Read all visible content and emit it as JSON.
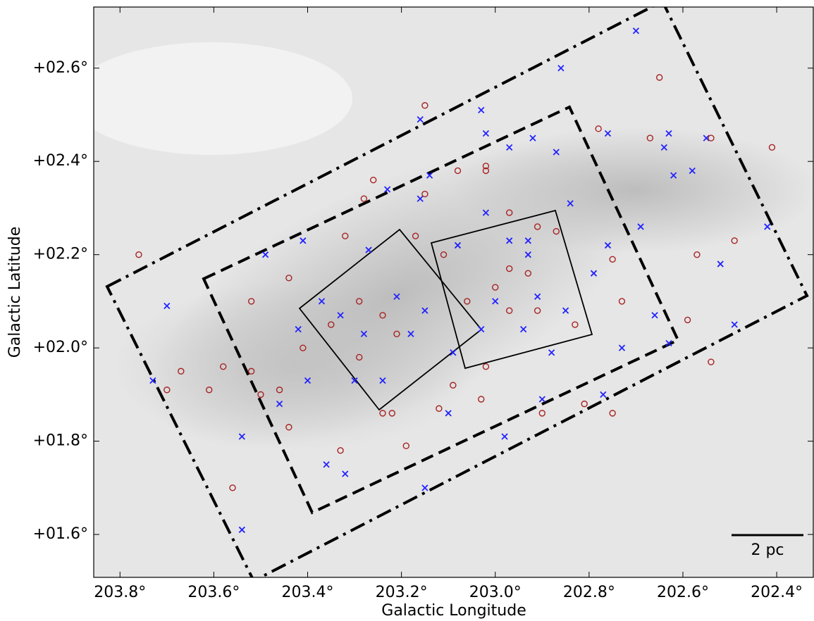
{
  "chart_data": {
    "type": "scatter",
    "xlabel": "Galactic Longitude",
    "ylabel": "Galactic Latitude",
    "xlim": [
      203.856,
      202.322
    ],
    "ylim": [
      1.508,
      2.731
    ],
    "xticks": [
      {
        "value": 203.8,
        "label": "203.8°"
      },
      {
        "value": 203.6,
        "label": "203.6°"
      },
      {
        "value": 203.4,
        "label": "203.4°"
      },
      {
        "value": 203.2,
        "label": "203.2°"
      },
      {
        "value": 203.0,
        "label": "203.0°"
      },
      {
        "value": 202.8,
        "label": "202.8°"
      },
      {
        "value": 202.6,
        "label": "202.6°"
      },
      {
        "value": 202.4,
        "label": "202.4°"
      }
    ],
    "yticks": [
      {
        "value": 1.6,
        "label": "+01.6°"
      },
      {
        "value": 1.8,
        "label": "+01.8°"
      },
      {
        "value": 2.0,
        "label": "+02.0°"
      },
      {
        "value": 2.2,
        "label": "+02.2°"
      },
      {
        "value": 2.4,
        "label": "+02.4°"
      },
      {
        "value": 2.6,
        "label": "+02.6°"
      }
    ],
    "scale_bar_label": "2 pc",
    "series": [
      {
        "marker": "x",
        "color": "#2323ff",
        "x": [
          203.7,
          203.73,
          203.54,
          203.49,
          203.54,
          203.46,
          203.41,
          203.36,
          203.32,
          203.27,
          203.23,
          203.16,
          203.14,
          203.03,
          203.02,
          202.97,
          202.92,
          202.86,
          202.87,
          202.76,
          202.7,
          202.63,
          202.58,
          202.55,
          202.42,
          202.52,
          202.49,
          202.63,
          202.73,
          202.77,
          202.9,
          202.98,
          203.1,
          203.15,
          203.18,
          203.28,
          203.33,
          203.21,
          203.15,
          203.08,
          203.02,
          202.97,
          202.93,
          202.93,
          202.91,
          203.0,
          203.03,
          202.94,
          202.85,
          202.79,
          202.76,
          202.69,
          202.66,
          202.88,
          203.09,
          203.24,
          203.3,
          203.4,
          203.42,
          203.37,
          203.16,
          202.84,
          202.64,
          202.62
        ],
        "values": [
          2.09,
          1.93,
          1.61,
          2.2,
          1.81,
          1.88,
          2.23,
          1.75,
          1.73,
          2.21,
          2.34,
          2.49,
          2.37,
          2.51,
          2.46,
          2.43,
          2.45,
          2.6,
          2.42,
          2.46,
          2.68,
          2.46,
          2.38,
          2.45,
          2.26,
          2.18,
          2.05,
          2.01,
          2.0,
          1.9,
          1.89,
          1.81,
          1.86,
          1.7,
          2.03,
          2.03,
          2.07,
          2.11,
          2.08,
          2.22,
          2.29,
          2.23,
          2.23,
          2.2,
          2.11,
          2.1,
          2.04,
          2.04,
          2.08,
          2.16,
          2.22,
          2.26,
          2.07,
          1.99,
          1.99,
          1.93,
          1.93,
          1.93,
          2.04,
          2.1,
          2.32,
          2.31,
          2.43,
          2.37
        ]
      },
      {
        "marker": "o",
        "color": "#a82222",
        "x": [
          203.76,
          203.67,
          203.7,
          203.61,
          203.56,
          203.52,
          203.44,
          203.41,
          203.35,
          203.29,
          203.24,
          203.21,
          203.29,
          203.26,
          203.15,
          203.08,
          203.02,
          202.97,
          202.91,
          202.87,
          202.97,
          202.93,
          203.0,
          202.97,
          202.91,
          203.02,
          203.03,
          203.09,
          203.19,
          203.33,
          203.44,
          203.22,
          202.78,
          202.65,
          202.67,
          202.54,
          202.41,
          202.49,
          202.57,
          202.59,
          202.54,
          202.73,
          202.75,
          202.81,
          202.9,
          203.02,
          203.15,
          203.28,
          203.32,
          203.17,
          203.46,
          203.5,
          203.52,
          203.58,
          202.75,
          202.83,
          203.12,
          203.24,
          203.06,
          203.11
        ],
        "values": [
          2.2,
          1.95,
          1.91,
          1.91,
          1.7,
          2.1,
          2.15,
          2.0,
          2.05,
          2.1,
          2.07,
          2.03,
          1.98,
          2.36,
          2.33,
          2.38,
          2.38,
          2.29,
          2.26,
          2.25,
          2.17,
          2.16,
          2.13,
          2.08,
          2.08,
          1.96,
          1.89,
          1.92,
          1.79,
          1.78,
          1.83,
          1.86,
          2.47,
          2.58,
          2.45,
          2.45,
          2.43,
          2.23,
          2.2,
          2.06,
          1.97,
          2.1,
          1.86,
          1.88,
          1.86,
          2.39,
          2.52,
          2.32,
          2.24,
          2.24,
          1.91,
          1.9,
          1.95,
          1.96,
          2.19,
          2.05,
          1.87,
          1.86,
          2.1,
          2.2
        ]
      }
    ]
  }
}
